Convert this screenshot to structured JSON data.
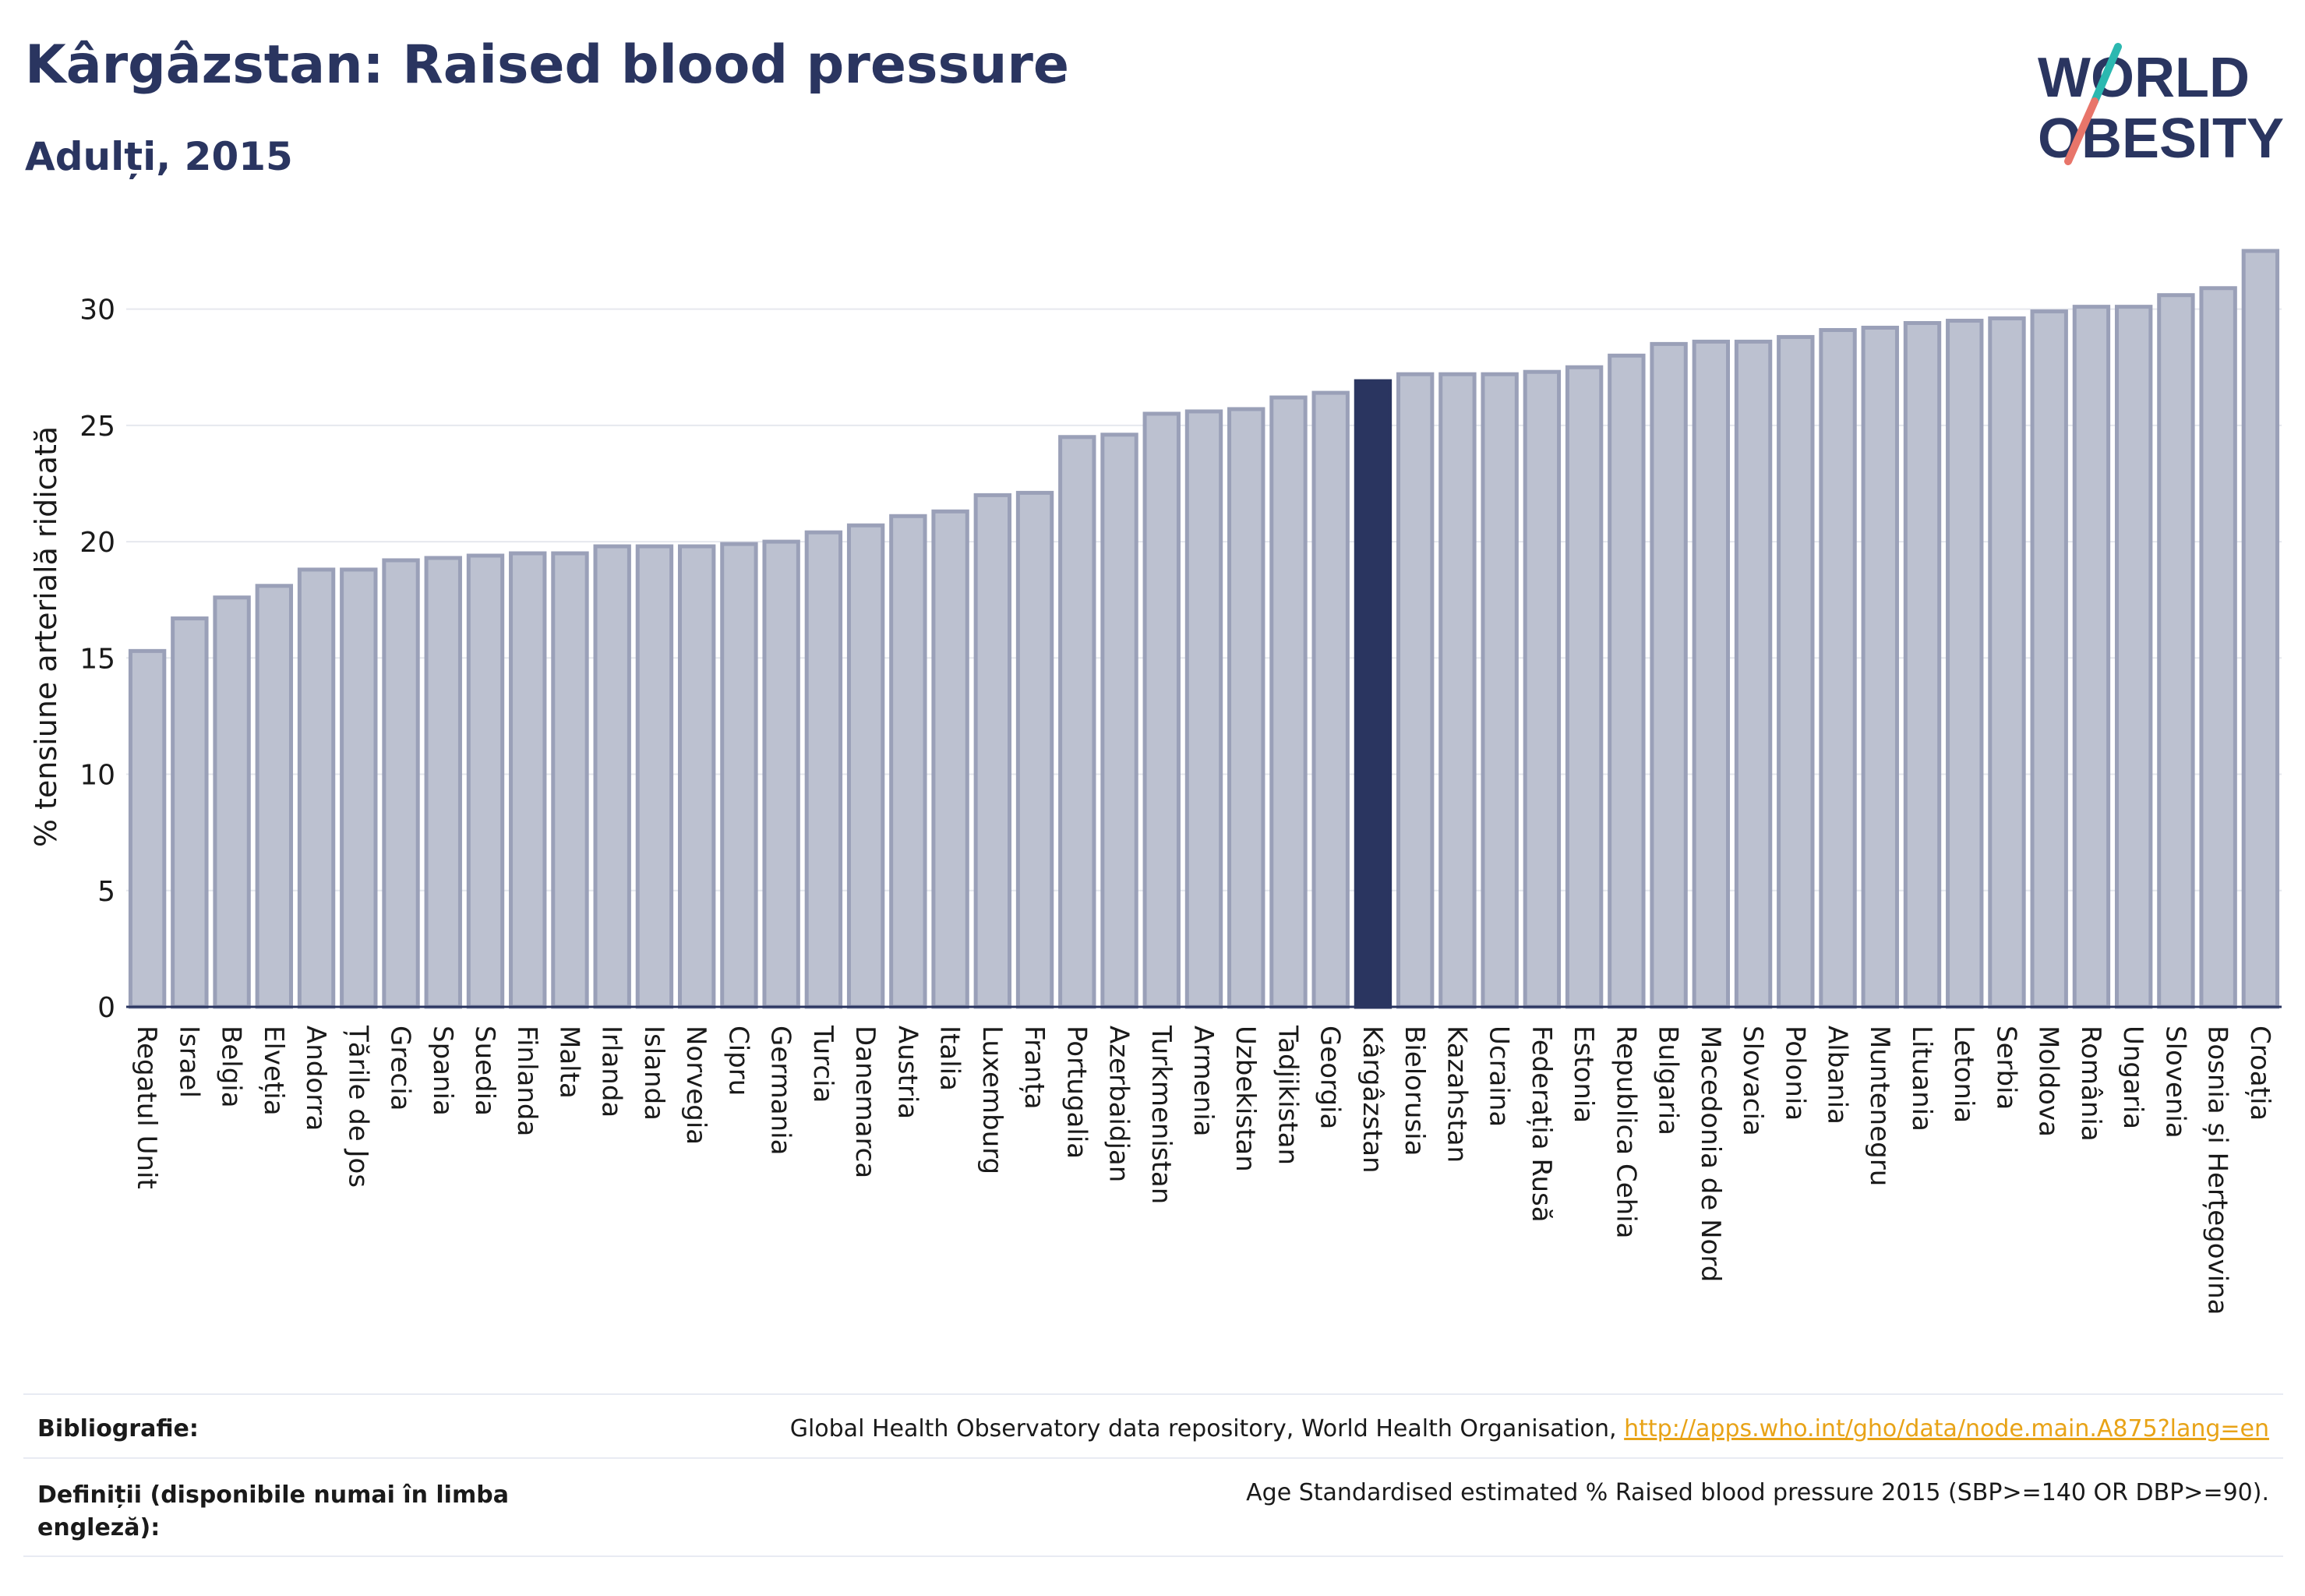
{
  "title": "Kârgâzstan: Raised blood pressure",
  "subtitle": "Adulți, 2015",
  "logo": {
    "line1": "WORLD",
    "line2": "OBESITY"
  },
  "colors": {
    "bar": "#bcc1d0",
    "bar_stroke": "#9aa0b8",
    "highlight": "#2a3560",
    "axis": "#2a3560",
    "grid": "#e6e8ee"
  },
  "chart_data": {
    "type": "bar",
    "ylabel": "% tensiune arterială ridicată",
    "ylim": [
      0,
      32.5
    ],
    "yticks": [
      0,
      5,
      10,
      15,
      20,
      25,
      30
    ],
    "highlight": "Kârgâzstan",
    "categories": [
      "Regatul Unit",
      "Israel",
      "Belgia",
      "Elveția",
      "Andorra",
      "Țările de Jos",
      "Grecia",
      "Spania",
      "Suedia",
      "Finlanda",
      "Malta",
      "Irlanda",
      "Islanda",
      "Norvegia",
      "Cipru",
      "Germania",
      "Turcia",
      "Danemarca",
      "Austria",
      "Italia",
      "Luxemburg",
      "Franța",
      "Portugalia",
      "Azerbaidjan",
      "Turkmenistan",
      "Armenia",
      "Uzbekistan",
      "Tadjikistan",
      "Georgia",
      "Kârgâzstan",
      "Bielorusia",
      "Kazahstan",
      "Ucraina",
      "Federația Rusă",
      "Estonia",
      "Republica Cehia",
      "Bulgaria",
      "Macedonia de Nord",
      "Slovacia",
      "Polonia",
      "Albania",
      "Muntenegru",
      "Lituania",
      "Letonia",
      "Serbia",
      "Moldova",
      "România",
      "Ungaria",
      "Slovenia",
      "Bosnia și Herțegovina",
      "Croația"
    ],
    "values": [
      15.3,
      16.7,
      17.6,
      18.1,
      18.8,
      18.8,
      19.2,
      19.3,
      19.4,
      19.5,
      19.5,
      19.8,
      19.8,
      19.8,
      19.9,
      20.0,
      20.4,
      20.7,
      21.1,
      21.3,
      22.0,
      22.1,
      24.5,
      24.6,
      25.5,
      25.6,
      25.7,
      26.2,
      26.4,
      26.9,
      27.2,
      27.2,
      27.2,
      27.3,
      27.5,
      28.0,
      28.5,
      28.6,
      28.6,
      28.8,
      29.1,
      29.2,
      29.4,
      29.5,
      29.6,
      29.9,
      30.1,
      30.1,
      30.6,
      30.9,
      32.5
    ]
  },
  "footer": {
    "bib_label": "Bibliografie:",
    "bib_text": "Global Health Observatory data repository, World Health Organisation,",
    "bib_link": "http://apps.who.int/gho/data/node.main.A875?lang=en",
    "def_label_1": "Definiții (disponibile numai în limba",
    "def_label_2": "engleză):",
    "def_text": "Age Standardised estimated % Raised blood pressure 2015 (SBP>=140 OR DBP>=90)."
  }
}
